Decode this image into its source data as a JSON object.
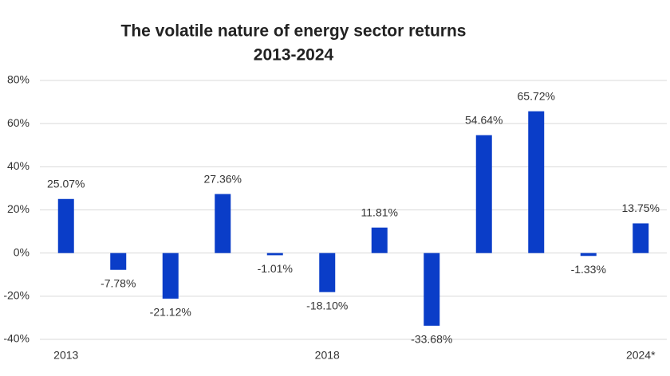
{
  "chart_data": {
    "type": "bar",
    "title": "The volatile nature of energy sector returns",
    "subtitle": "2013-2024",
    "categories": [
      "2013",
      null,
      null,
      null,
      null,
      "2018",
      null,
      null,
      null,
      null,
      null,
      "2024*"
    ],
    "values": [
      25.07,
      -7.78,
      -21.12,
      27.36,
      -1.01,
      -18.1,
      11.81,
      -33.68,
      54.64,
      65.72,
      -1.33,
      13.75
    ],
    "value_labels": [
      "25.07%",
      "-7.78%",
      "-21.12%",
      "27.36%",
      "-1.01%",
      "-18.10%",
      "11.81%",
      "-33.68%",
      "54.64%",
      "65.72%",
      "-1.33%",
      "13.75%"
    ],
    "color": "#0a3dc8",
    "ylim": [
      -40,
      80
    ],
    "yticks": [
      {
        "value": -40,
        "label": "-40%"
      },
      {
        "value": -20,
        "label": "-20%"
      },
      {
        "value": 0,
        "label": "0%"
      },
      {
        "value": 20,
        "label": "20%"
      },
      {
        "value": 40,
        "label": "40%"
      },
      {
        "value": 60,
        "label": "60%"
      },
      {
        "value": 80,
        "label": "80%"
      }
    ],
    "grid": true
  }
}
